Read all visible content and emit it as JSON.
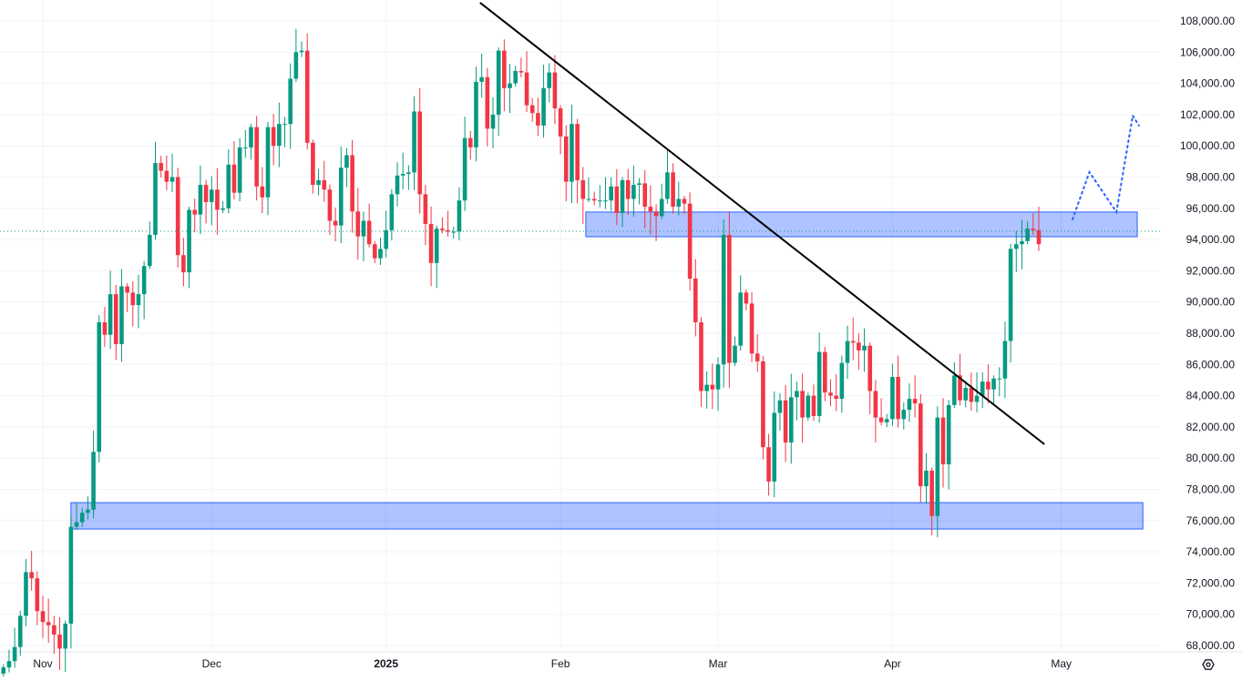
{
  "chart_data": {
    "type": "candlestick",
    "title": "",
    "start_date": "2024-10-25",
    "interval": "1D",
    "closes": [
      66.6,
      67.0,
      67.9,
      69.9,
      72.7,
      72.3,
      70.2,
      69.5,
      69.3,
      68.7,
      67.8,
      69.4,
      75.6,
      75.9,
      76.5,
      76.7,
      80.4,
      88.7,
      87.9,
      90.5,
      87.3,
      91.0,
      90.6,
      89.8,
      90.5,
      92.3,
      94.3,
      98.9,
      98.4,
      97.7,
      98.0,
      93.0,
      91.9,
      95.9,
      95.6,
      97.5,
      96.4,
      97.2,
      95.9,
      96.0,
      98.8,
      97.0,
      99.9,
      99.9,
      101.2,
      97.4,
      96.7,
      101.2,
      100.0,
      101.4,
      101.4,
      104.3,
      106.0,
      106.1,
      100.2,
      97.5,
      97.8,
      97.2,
      95.2,
      94.9,
      98.6,
      99.4,
      95.8,
      94.2,
      95.2,
      93.7,
      92.8,
      93.4,
      94.6,
      96.9,
      98.1,
      98.2,
      98.3,
      102.2,
      96.9,
      95.0,
      92.5,
      94.7,
      94.6,
      94.5,
      94.5,
      96.5,
      100.5,
      99.9,
      104.1,
      104.4,
      101.1,
      102.0,
      106.1,
      103.7,
      104.0,
      104.8,
      104.7,
      102.6,
      102.1,
      101.3,
      103.7,
      104.7,
      102.4,
      100.6,
      97.7,
      101.4,
      97.8,
      96.6,
      96.6,
      96.5,
      96.5,
      96.5,
      97.4,
      95.7,
      97.8,
      96.6,
      97.5,
      97.6,
      96.1,
      95.8,
      95.5,
      96.6,
      98.3,
      96.1,
      96.6,
      96.3,
      91.5,
      88.7,
      84.3,
      84.7,
      84.4,
      86.0,
      94.3,
      86.1,
      87.2,
      90.6,
      89.9,
      86.7,
      86.2,
      80.7,
      78.5,
      82.9,
      83.7,
      81.0,
      83.9,
      84.3,
      82.6,
      84.0,
      82.7,
      86.8,
      84.2,
      84.0,
      83.8,
      86.1,
      87.5,
      87.4,
      86.9,
      87.2,
      84.3,
      82.6,
      82.3,
      82.5,
      85.2,
      82.5,
      83.1,
      83.8,
      83.5,
      78.2,
      79.2,
      76.3,
      82.6,
      79.6,
      83.4,
      85.3,
      83.7,
      84.5,
      83.6,
      84.0,
      84.9,
      84.4,
      85.1,
      85.1,
      87.5,
      93.4,
      93.7,
      93.9,
      94.7,
      94.6,
      93.7
    ],
    "close_units": "thousands USD",
    "ylim": [
      67000,
      109500
    ],
    "y_ticks": [
      "108,000.00",
      "106,000.00",
      "104,000.00",
      "102,000.00",
      "100,000.00",
      "98,000.00",
      "96,000.00",
      "94,000.00",
      "92,000.00",
      "90,000.00",
      "88,000.00",
      "86,000.00",
      "84,000.00",
      "82,000.00",
      "80,000.00",
      "78,000.00",
      "76,000.00",
      "74,000.00",
      "72,000.00",
      "70,000.00",
      "68,000.00"
    ],
    "x_ticks": [
      {
        "label": "Nov",
        "day_index": 7,
        "bold": false
      },
      {
        "label": "Dec",
        "day_index": 37,
        "bold": false
      },
      {
        "label": "2025",
        "day_index": 68,
        "bold": true
      },
      {
        "label": "Feb",
        "day_index": 99,
        "bold": false
      },
      {
        "label": "Mar",
        "day_index": 127,
        "bold": false
      },
      {
        "label": "Apr",
        "day_index": 158,
        "bold": false
      },
      {
        "label": "May",
        "day_index": 188,
        "bold": false
      }
    ],
    "current_price": 94530,
    "zones": [
      {
        "name": "resistance-zone",
        "from_index": 103.5,
        "to_index": 201.5,
        "low": 94180,
        "high": 95760
      },
      {
        "name": "support-zone",
        "from_index": 12,
        "to_index": 202.5,
        "low": 75460,
        "high": 77150
      }
    ],
    "trendline": {
      "from": {
        "index": 84.7,
        "price": 109170
      },
      "to": {
        "index": 185,
        "price": 80890
      }
    },
    "projection": [
      {
        "index": 190,
        "price": 95290
      },
      {
        "index": 193,
        "price": 98320
      },
      {
        "index": 197.8,
        "price": 95760
      },
      {
        "index": 200.7,
        "price": 101940
      },
      {
        "index": 201.8,
        "price": 101300
      }
    ],
    "colors": {
      "up": "#089981",
      "down": "#f23645",
      "zone_fill": "#2962ff",
      "trendline": "#000000",
      "projection": "#2962ff",
      "grid": "#f0f3fa"
    }
  },
  "settings_icon": "gear-icon"
}
